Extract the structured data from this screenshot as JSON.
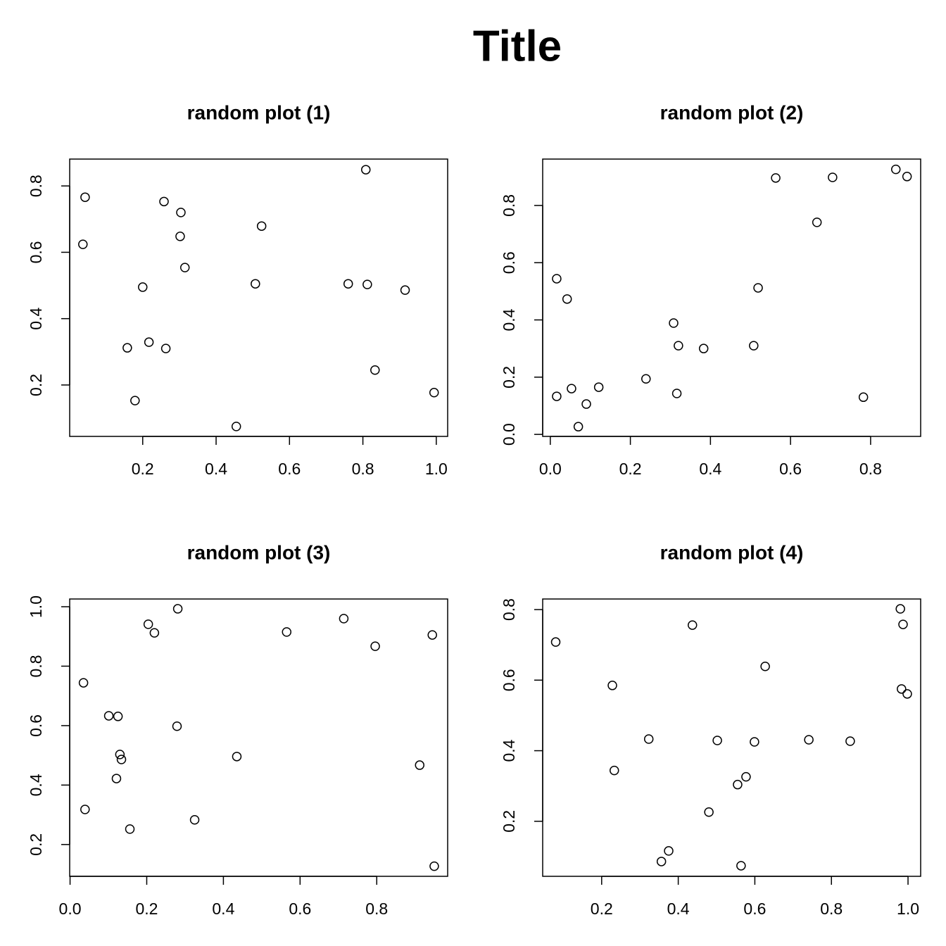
{
  "title": "Title",
  "title_color": "#ff0000",
  "chart_data": [
    {
      "type": "scatter",
      "title": "random plot (1)",
      "color": "#000000",
      "x": [
        0.043,
        0.037,
        0.258,
        0.304,
        0.302,
        0.315,
        0.2,
        0.158,
        0.217,
        0.263,
        0.179,
        0.455,
        0.507,
        0.524,
        0.76,
        0.808,
        0.812,
        0.915,
        0.833,
        0.994
      ],
      "values": [
        0.766,
        0.624,
        0.753,
        0.72,
        0.648,
        0.554,
        0.495,
        0.312,
        0.329,
        0.31,
        0.153,
        0.075,
        0.505,
        0.679,
        0.505,
        0.849,
        0.503,
        0.486,
        0.245,
        0.177
      ],
      "xlim": [
        0.001,
        1.031
      ],
      "ylim": [
        0.045,
        0.881
      ],
      "xticks": [
        0.2,
        0.4,
        0.6,
        0.8,
        {
          "value": 1,
          "label": "1.0"
        }
      ],
      "yticks": [
        0.2,
        0.4,
        0.6,
        0.8
      ]
    },
    {
      "type": "scatter",
      "title": "random plot (2)",
      "color": "#000000",
      "x": [
        0.016,
        0.042,
        0.016,
        0.053,
        0.09,
        0.07,
        0.121,
        0.239,
        0.308,
        0.32,
        0.316,
        0.383,
        0.508,
        0.519,
        0.563,
        0.666,
        0.705,
        0.782,
        0.863,
        0.891
      ],
      "values": [
        0.544,
        0.473,
        0.133,
        0.16,
        0.106,
        0.027,
        0.165,
        0.194,
        0.389,
        0.31,
        0.143,
        0.3,
        0.31,
        0.512,
        0.896,
        0.741,
        0.898,
        0.13,
        0.926,
        0.901
      ],
      "xlim": [
        -0.019,
        0.925
      ],
      "ylim": [
        -0.007,
        0.962
      ],
      "xticks": [
        {
          "value": 0,
          "label": "0.0"
        },
        0.2,
        0.4,
        0.6,
        0.8
      ],
      "yticks": [
        {
          "value": 0,
          "label": "0.0"
        },
        0.2,
        0.4,
        0.6,
        0.8
      ]
    },
    {
      "type": "scatter",
      "title": "random plot (3)",
      "color": "#000000",
      "x": [
        0.035,
        0.039,
        0.101,
        0.125,
        0.13,
        0.134,
        0.121,
        0.156,
        0.204,
        0.22,
        0.281,
        0.279,
        0.325,
        0.435,
        0.565,
        0.714,
        0.796,
        0.912,
        0.945,
        0.95
      ],
      "values": [
        0.744,
        0.318,
        0.633,
        0.631,
        0.503,
        0.486,
        0.422,
        0.252,
        0.941,
        0.912,
        0.993,
        0.598,
        0.283,
        0.496,
        0.915,
        0.96,
        0.867,
        0.467,
        0.905,
        0.127
      ],
      "xlim": [
        -0.001,
        0.985
      ],
      "ylim": [
        0.093,
        1.026
      ],
      "xticks": [
        {
          "value": 0,
          "label": "0.0"
        },
        0.2,
        0.4,
        0.6,
        0.8
      ],
      "yticks": [
        0.2,
        0.4,
        0.6,
        0.8,
        {
          "value": 1,
          "label": "1.0"
        }
      ]
    },
    {
      "type": "scatter",
      "title": "random plot (4)",
      "color": "#000000",
      "x": [
        0.08,
        0.228,
        0.233,
        0.323,
        0.356,
        0.375,
        0.437,
        0.48,
        0.502,
        0.555,
        0.577,
        0.564,
        0.599,
        0.627,
        0.741,
        0.849,
        0.98,
        0.987,
        0.983,
        0.998
      ],
      "values": [
        0.708,
        0.585,
        0.344,
        0.433,
        0.086,
        0.116,
        0.756,
        0.226,
        0.429,
        0.304,
        0.326,
        0.074,
        0.425,
        0.639,
        0.431,
        0.427,
        0.802,
        0.758,
        0.575,
        0.561
      ],
      "xlim": [
        0.046,
        1.033
      ],
      "ylim": [
        0.044,
        0.83
      ],
      "xticks": [
        0.2,
        0.4,
        0.6,
        0.8,
        {
          "value": 1,
          "label": "1.0"
        }
      ],
      "yticks": [
        0.2,
        0.4,
        0.6,
        0.8
      ]
    }
  ]
}
